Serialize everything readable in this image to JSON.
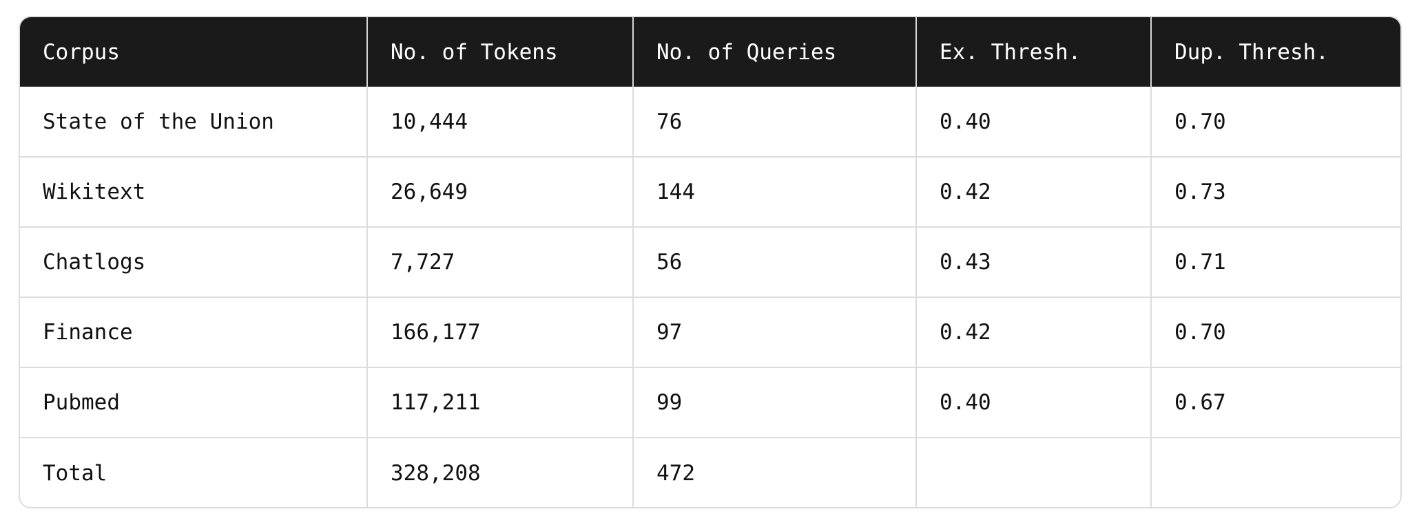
{
  "table": {
    "headers": [
      "Corpus",
      "No. of Tokens",
      "No. of Queries",
      "Ex. Thresh.",
      "Dup. Thresh."
    ],
    "rows": [
      [
        "State of the Union",
        "10,444",
        "76",
        "0.40",
        "0.70"
      ],
      [
        "Wikitext",
        "26,649",
        "144",
        "0.42",
        "0.73"
      ],
      [
        "Chatlogs",
        "7,727",
        "56",
        "0.43",
        "0.71"
      ],
      [
        "Finance",
        "166,177",
        "97",
        "0.42",
        "0.70"
      ],
      [
        "Pubmed",
        "117,211",
        "99",
        "0.40",
        "0.67"
      ],
      [
        "Total",
        "328,208",
        "472",
        "",
        ""
      ]
    ]
  }
}
